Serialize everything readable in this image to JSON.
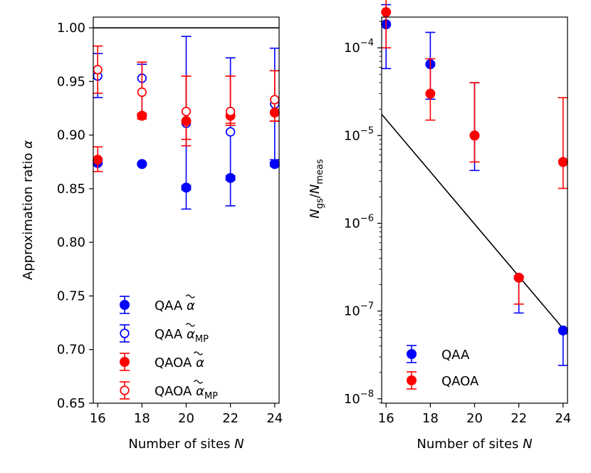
{
  "chart_data": [
    {
      "type": "scatter",
      "name": "approximation-ratio",
      "xlabel": "Number of sites",
      "xlabel_var": "N",
      "ylabel": "Approximation ratio",
      "ylabel_var": "α",
      "xlim": [
        15.8,
        24.2
      ],
      "ylim": [
        0.65,
        1.01
      ],
      "xticks": [
        16,
        18,
        20,
        22,
        24
      ],
      "xtick_labels": [
        "16",
        "18",
        "20",
        "22",
        "24"
      ],
      "yticks": [
        0.65,
        0.7,
        0.75,
        0.8,
        0.85,
        0.9,
        0.95,
        1.0
      ],
      "ytick_labels": [
        "0.65",
        "0.70",
        "0.75",
        "0.80",
        "0.85",
        "0.90",
        "0.95",
        "1.00"
      ],
      "reference_line": 1.0,
      "legend_position": "lower-left",
      "series": [
        {
          "name": "QAA",
          "sub": "",
          "color": "#0000ff",
          "filled": true,
          "points": [
            {
              "x": 16,
              "y": 0.874,
              "lo": 0.873,
              "hi": 0.876
            },
            {
              "x": 18,
              "y": 0.873,
              "lo": 0.872,
              "hi": 0.874
            },
            {
              "x": 20,
              "y": 0.851,
              "lo": 0.849,
              "hi": 0.853
            },
            {
              "x": 22,
              "y": 0.86,
              "lo": 0.858,
              "hi": 0.862
            },
            {
              "x": 24,
              "y": 0.873,
              "lo": 0.871,
              "hi": 0.875
            }
          ]
        },
        {
          "name": "QAA",
          "sub": "MP",
          "color": "#0000ff",
          "filled": false,
          "points": [
            {
              "x": 16,
              "y": 0.955,
              "lo": 0.935,
              "hi": 0.976
            },
            {
              "x": 18,
              "y": 0.953,
              "lo": 0.918,
              "hi": 0.966
            },
            {
              "x": 20,
              "y": 0.911,
              "lo": 0.831,
              "hi": 0.992
            },
            {
              "x": 22,
              "y": 0.903,
              "lo": 0.834,
              "hi": 0.972
            },
            {
              "x": 24,
              "y": 0.929,
              "lo": 0.877,
              "hi": 0.981
            }
          ]
        },
        {
          "name": "QAOA",
          "sub": "",
          "color": "#ff0000",
          "filled": true,
          "points": [
            {
              "x": 16,
              "y": 0.877,
              "lo": 0.866,
              "hi": 0.889
            },
            {
              "x": 18,
              "y": 0.918,
              "lo": 0.915,
              "hi": 0.92
            },
            {
              "x": 20,
              "y": 0.913,
              "lo": 0.89,
              "hi": 0.955
            },
            {
              "x": 22,
              "y": 0.918,
              "lo": 0.909,
              "hi": 0.955
            },
            {
              "x": 24,
              "y": 0.921,
              "lo": 0.913,
              "hi": 0.96
            }
          ]
        },
        {
          "name": "QAOA",
          "sub": "MP",
          "color": "#ff0000",
          "filled": false,
          "points": [
            {
              "x": 16,
              "y": 0.961,
              "lo": 0.939,
              "hi": 0.983
            },
            {
              "x": 18,
              "y": 0.94,
              "lo": 0.92,
              "hi": 0.968
            },
            {
              "x": 20,
              "y": 0.922,
              "lo": 0.896,
              "hi": 0.955
            },
            {
              "x": 22,
              "y": 0.922,
              "lo": 0.911,
              "hi": 0.955
            },
            {
              "x": 24,
              "y": 0.933,
              "lo": 0.913,
              "hi": 0.96
            }
          ]
        }
      ]
    },
    {
      "type": "scatter",
      "name": "ground-state-probability",
      "xlabel": "Number of sites",
      "xlabel_var": "N",
      "ylabel_var_num": "N",
      "ylabel_sub_num": "gs",
      "ylabel_sep": "/",
      "ylabel_var_den": "N",
      "ylabel_sub_den": "meas",
      "yscale": "log",
      "xlim": [
        15.8,
        24.2
      ],
      "ylim_log10": [
        -8.05,
        -3.65
      ],
      "xticks": [
        16,
        18,
        20,
        22,
        24
      ],
      "xtick_labels": [
        "16",
        "18",
        "20",
        "22",
        "24"
      ],
      "yticks_log10": [
        -8,
        -7,
        -6,
        -5,
        -4
      ],
      "ytick_base": "10",
      "ytick_exponents": [
        "−8",
        "−7",
        "−6",
        "−5",
        "−4"
      ],
      "fit_line": [
        {
          "x": 15.8,
          "y": 1.75e-05
        },
        {
          "x": 24.2,
          "y": 5.5e-08
        }
      ],
      "legend_position": "lower-left",
      "series": [
        {
          "name": "QAA",
          "color": "#0000ff",
          "points": [
            {
              "x": 16,
              "y": 0.000185,
              "lo": 5.8e-05,
              "hi": 0.00031
            },
            {
              "x": 18,
              "y": 6.5e-05,
              "lo": 2.6e-05,
              "hi": 0.00015
            },
            {
              "x": 20,
              "y": 1e-05,
              "lo": 4e-06,
              "hi": 4e-05
            },
            {
              "x": 22,
              "y": 2.4e-07,
              "lo": 9.5e-08,
              "hi": 2.5e-07
            },
            {
              "x": 24,
              "y": 6e-08,
              "lo": 2.4e-08,
              "hi": 6.2e-08
            }
          ]
        },
        {
          "name": "QAOA",
          "color": "#ff0000",
          "points": [
            {
              "x": 16,
              "y": 0.000255,
              "lo": 0.0001,
              "hi": 0.00041
            },
            {
              "x": 18,
              "y": 3e-05,
              "lo": 1.5e-05,
              "hi": 7.5e-05
            },
            {
              "x": 20,
              "y": 1e-05,
              "lo": 5e-06,
              "hi": 4e-05
            },
            {
              "x": 22,
              "y": 2.4e-07,
              "lo": 1.2e-07,
              "hi": 2.5e-07
            },
            {
              "x": 24,
              "y": 5e-06,
              "lo": 2.5e-06,
              "hi": 2.7e-05
            }
          ]
        }
      ]
    }
  ]
}
